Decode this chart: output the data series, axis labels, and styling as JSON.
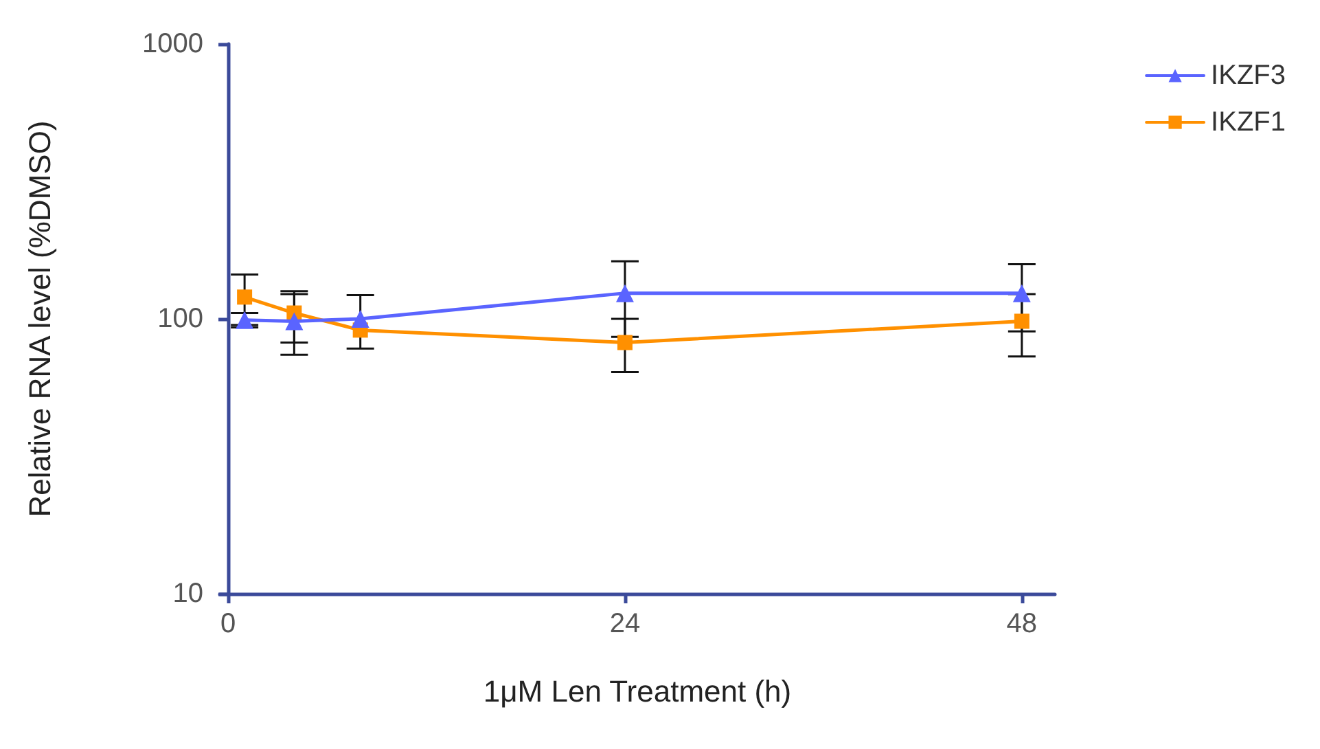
{
  "chart_data": {
    "type": "line",
    "xlabel": "1μM Len Treatment (h)",
    "ylabel": "Relative RNA level (%DMSO)",
    "log": "y",
    "grid": false,
    "legend": "top right",
    "xlim": [
      -0.5,
      50
    ],
    "xticks": [
      0,
      24,
      48
    ],
    "ylim": [
      10,
      1000
    ],
    "yticks": [
      10,
      100,
      1000
    ],
    "x": [
      1,
      4,
      8,
      24,
      48
    ],
    "series": [
      {
        "name": "IKZF3",
        "color": "#5a64ff",
        "marker": "triangle",
        "values": [
          99,
          98,
          100,
          124,
          124
        ],
        "errors": [
          [
            93,
            105
          ],
          [
            74,
            123
          ],
          [
            78,
            122
          ],
          [
            86,
            162
          ],
          [
            90,
            158
          ]
        ]
      },
      {
        "name": "IKZF1",
        "color": "#ff9000",
        "marker": "square",
        "values": [
          120,
          105,
          91,
          82,
          98
        ],
        "errors": [
          [
            95,
            145
          ],
          [
            82,
            126
          ],
          null,
          [
            64,
            100
          ],
          [
            73,
            123
          ]
        ]
      }
    ]
  }
}
